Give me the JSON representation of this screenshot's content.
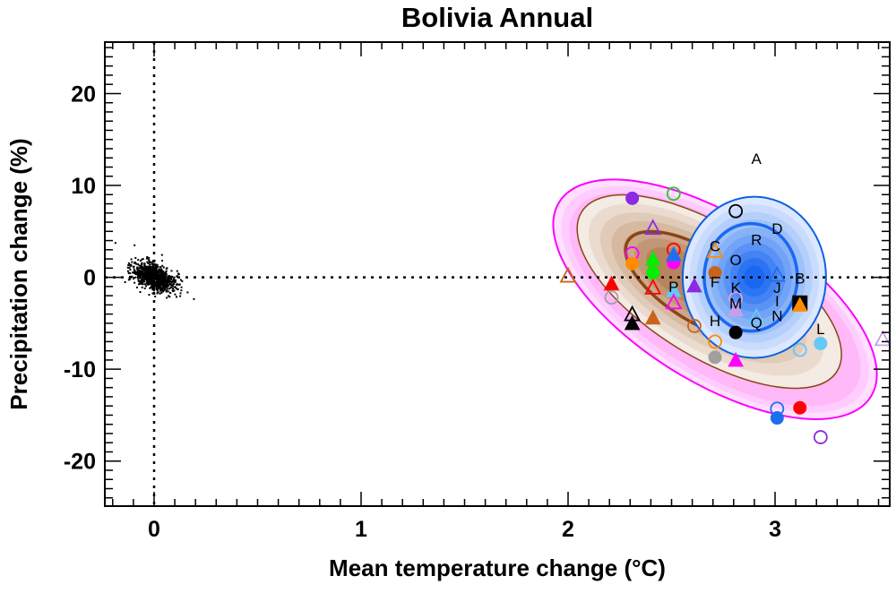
{
  "chart_data": {
    "type": "scatter",
    "title": "Bolivia Annual",
    "xlabel": "Mean temperature change (°C)",
    "ylabel": "Precipitation change (%)",
    "xlim": [
      -0.238,
      3.554
    ],
    "ylim": [
      -24.9,
      25.6
    ],
    "xticks": [
      {
        "v": 0,
        "label": "0"
      },
      {
        "v": 1,
        "label": "1"
      },
      {
        "v": 2,
        "label": "2"
      },
      {
        "v": 3,
        "label": "3"
      }
    ],
    "yticks": [
      {
        "v": 20,
        "label": "20"
      },
      {
        "v": 10,
        "label": "10"
      },
      {
        "v": 0,
        "label": "0"
      },
      {
        "v": -10,
        "label": "-10"
      },
      {
        "v": -20,
        "label": "-20"
      }
    ],
    "reference_lines": {
      "x": 0,
      "y": 0
    },
    "natural_variability_cloud": {
      "center": [
        0,
        0
      ],
      "color": "#000000"
    },
    "distributions": [
      {
        "name": "model-ensemble-pdf",
        "center": [
          2.71,
          -2.4
        ],
        "colors": [
          "#ff00ff",
          "#8b4513"
        ]
      },
      {
        "name": "perturbed-physics-pdf",
        "center": [
          2.9,
          0.0
        ],
        "colors": [
          "#1060e0"
        ]
      }
    ],
    "points": [
      {
        "x": 2.0,
        "y": 0.1,
        "shape": "triangle",
        "filled": false,
        "color": "#c8641e"
      },
      {
        "x": 2.31,
        "y": 8.6,
        "shape": "circle",
        "filled": true,
        "color": "#8a2be2"
      },
      {
        "x": 2.51,
        "y": 9.1,
        "shape": "circle",
        "filled": false,
        "color": "#22cc22"
      },
      {
        "x": 2.41,
        "y": 5.3,
        "shape": "triangle",
        "filled": false,
        "color": "#8a2be2"
      },
      {
        "x": 2.31,
        "y": 2.6,
        "shape": "circle",
        "filled": false,
        "color": "#ff00ff"
      },
      {
        "x": 2.31,
        "y": 1.5,
        "shape": "circle",
        "filled": true,
        "color": "#ff8c00"
      },
      {
        "x": 2.51,
        "y": 3.0,
        "shape": "circle",
        "filled": false,
        "color": "#ff0000"
      },
      {
        "x": 2.51,
        "y": 1.6,
        "shape": "circle",
        "filled": true,
        "color": "#ff00ff"
      },
      {
        "x": 2.51,
        "y": 2.4,
        "shape": "triangle",
        "filled": true,
        "color": "#1e6ff0"
      },
      {
        "x": 2.41,
        "y": 1.9,
        "shape": "triangle",
        "filled": true,
        "color": "#00ee00"
      },
      {
        "x": 2.41,
        "y": 0.5,
        "shape": "circle",
        "filled": true,
        "color": "#00ee00"
      },
      {
        "x": 2.41,
        "y": -1.2,
        "shape": "triangle",
        "filled": false,
        "color": "#ff0000"
      },
      {
        "x": 2.51,
        "y": -1.5,
        "shape": "triangle",
        "filled": true,
        "color": "#66c8f5"
      },
      {
        "x": 2.51,
        "y": -2.8,
        "shape": "triangle",
        "filled": false,
        "color": "#ff00ff"
      },
      {
        "x": 2.61,
        "y": -1.0,
        "shape": "triangle",
        "filled": true,
        "color": "#8a2be2"
      },
      {
        "x": 2.21,
        "y": -0.8,
        "shape": "triangle",
        "filled": true,
        "color": "#ff0000"
      },
      {
        "x": 2.21,
        "y": -2.2,
        "shape": "circle",
        "filled": false,
        "color": "#a0a0a0"
      },
      {
        "x": 2.31,
        "y": -4.1,
        "shape": "triangle",
        "filled": false,
        "color": "#000000"
      },
      {
        "x": 2.31,
        "y": -5.1,
        "shape": "triangle",
        "filled": true,
        "color": "#000000"
      },
      {
        "x": 2.41,
        "y": -4.5,
        "shape": "triangle",
        "filled": true,
        "color": "#c8641e"
      },
      {
        "x": 2.61,
        "y": -5.3,
        "shape": "circle",
        "filled": false,
        "color": "#c8641e"
      },
      {
        "x": 2.71,
        "y": -7.0,
        "shape": "circle",
        "filled": false,
        "color": "#ff8c00"
      },
      {
        "x": 2.71,
        "y": -8.7,
        "shape": "circle",
        "filled": true,
        "color": "#a0a0a0"
      },
      {
        "x": 2.81,
        "y": -9.1,
        "shape": "triangle",
        "filled": true,
        "color": "#ff00ff"
      },
      {
        "x": 2.71,
        "y": 2.8,
        "shape": "triangle",
        "filled": false,
        "color": "#ff8c00"
      },
      {
        "x": 2.71,
        "y": 0.5,
        "shape": "circle",
        "filled": true,
        "color": "#c8641e"
      },
      {
        "x": 2.81,
        "y": 7.2,
        "shape": "circle",
        "filled": false,
        "color": "#000000"
      },
      {
        "x": 2.81,
        "y": -2.3,
        "shape": "circle",
        "filled": false,
        "color": "#dda0dd"
      },
      {
        "x": 2.81,
        "y": -3.6,
        "shape": "triangle",
        "filled": true,
        "color": "#c8a0e8"
      },
      {
        "x": 2.81,
        "y": -6.0,
        "shape": "circle",
        "filled": true,
        "color": "#000000"
      },
      {
        "x": 2.91,
        "y": -4.4,
        "shape": "triangle",
        "filled": false,
        "color": "#66c8f5"
      },
      {
        "x": 3.01,
        "y": 0.2,
        "shape": "triangle",
        "filled": false,
        "color": "#1e6ff0"
      },
      {
        "x": 3.12,
        "y": -2.8,
        "shape": "square",
        "filled": true,
        "color": "#000000"
      },
      {
        "x": 3.12,
        "y": -3.1,
        "shape": "triangle",
        "filled": true,
        "color": "#ff8c00"
      },
      {
        "x": 3.12,
        "y": -7.9,
        "shape": "circle",
        "filled": false,
        "color": "#66c8f5"
      },
      {
        "x": 3.22,
        "y": -7.2,
        "shape": "circle",
        "filled": true,
        "color": "#66c8f5"
      },
      {
        "x": 3.01,
        "y": -14.3,
        "shape": "circle",
        "filled": false,
        "color": "#1e6ff0"
      },
      {
        "x": 3.01,
        "y": -15.3,
        "shape": "circle",
        "filled": true,
        "color": "#1e6ff0"
      },
      {
        "x": 3.12,
        "y": -14.2,
        "shape": "circle",
        "filled": true,
        "color": "#ff0000"
      },
      {
        "x": 3.22,
        "y": -17.4,
        "shape": "circle",
        "filled": false,
        "color": "#8a2be2"
      },
      {
        "x": 3.52,
        "y": -6.8,
        "shape": "triangle",
        "filled": false,
        "color": "#c8a0e8"
      }
    ],
    "letter_points": [
      {
        "x": 2.91,
        "y": 13.0,
        "label": "A"
      },
      {
        "x": 3.01,
        "y": 5.4,
        "label": "D"
      },
      {
        "x": 2.91,
        "y": 4.2,
        "label": "R"
      },
      {
        "x": 2.71,
        "y": 3.5,
        "label": "C"
      },
      {
        "x": 2.81,
        "y": 2.0,
        "label": "O"
      },
      {
        "x": 3.12,
        "y": 0.0,
        "label": "B"
      },
      {
        "x": 2.71,
        "y": -0.4,
        "label": "F"
      },
      {
        "x": 3.01,
        "y": -1.0,
        "label": "J"
      },
      {
        "x": 2.81,
        "y": -1.0,
        "label": "K"
      },
      {
        "x": 2.51,
        "y": -0.9,
        "label": "P"
      },
      {
        "x": 3.01,
        "y": -2.5,
        "label": "I"
      },
      {
        "x": 2.81,
        "y": -2.7,
        "label": "M"
      },
      {
        "x": 3.01,
        "y": -4.1,
        "label": "N"
      },
      {
        "x": 2.71,
        "y": -4.6,
        "label": "H"
      },
      {
        "x": 2.91,
        "y": -4.8,
        "label": "Q"
      },
      {
        "x": 3.22,
        "y": -5.5,
        "label": "L"
      }
    ]
  }
}
